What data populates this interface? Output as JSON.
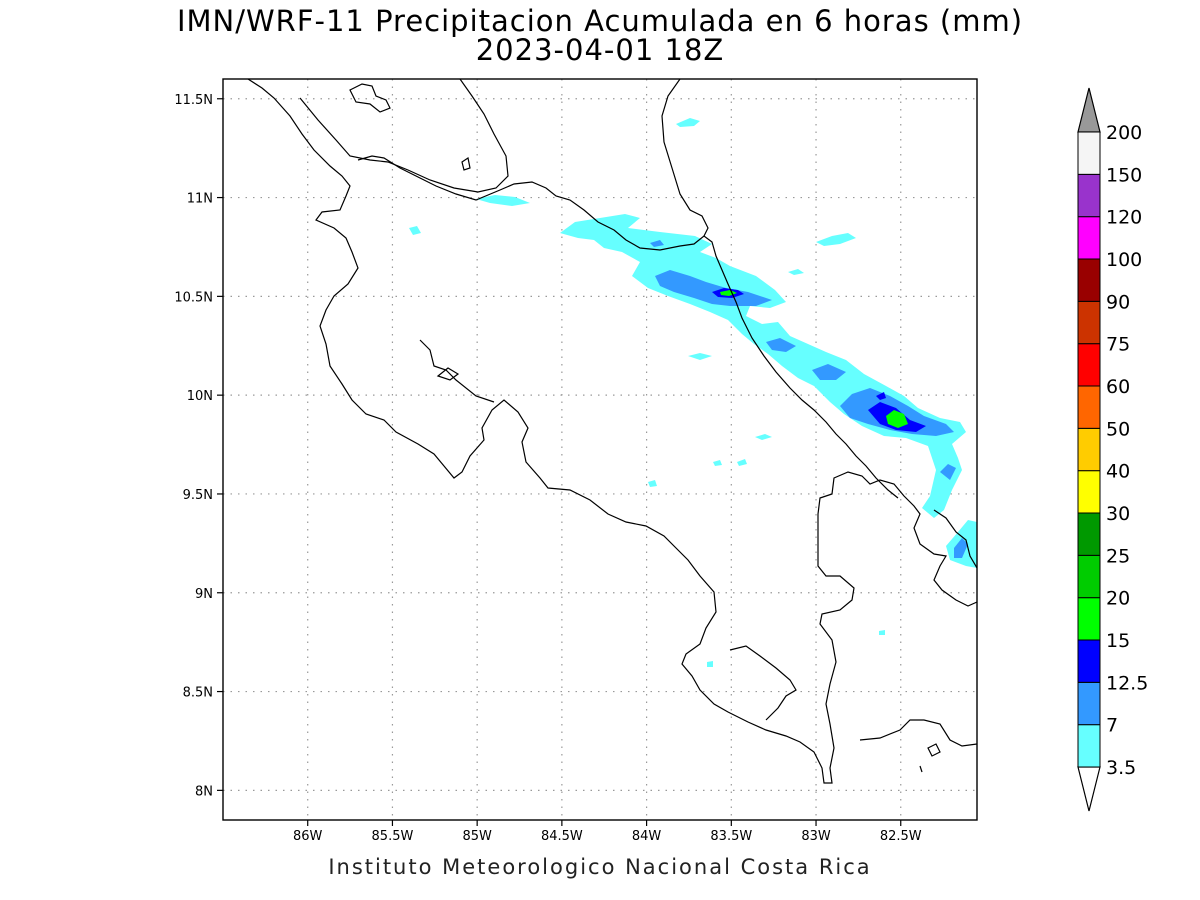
{
  "title": {
    "line1": "IMN/WRF-11 Precipitacion Acumulada en 6 horas (mm)",
    "line2": "2023-04-01 18Z"
  },
  "footer": "Instituto Meteorologico Nacional Costa Rica",
  "map": {
    "lon_range": [
      -86.5,
      -82.05
    ],
    "lat_range": [
      7.85,
      11.6
    ],
    "x_ticks": [
      {
        "lon": -86.0,
        "label": "86W"
      },
      {
        "lon": -85.5,
        "label": "85.5W"
      },
      {
        "lon": -85.0,
        "label": "85W"
      },
      {
        "lon": -84.5,
        "label": "84.5W"
      },
      {
        "lon": -84.0,
        "label": "84W"
      },
      {
        "lon": -83.5,
        "label": "83.5W"
      },
      {
        "lon": -83.0,
        "label": "83W"
      },
      {
        "lon": -82.5,
        "label": "82.5W"
      }
    ],
    "y_ticks": [
      {
        "lat": 11.5,
        "label": "11.5N"
      },
      {
        "lat": 11.0,
        "label": "11N"
      },
      {
        "lat": 10.5,
        "label": "10.5N"
      },
      {
        "lat": 10.0,
        "label": "10N"
      },
      {
        "lat": 9.5,
        "label": "9.5N"
      },
      {
        "lat": 9.0,
        "label": "9N"
      },
      {
        "lat": 8.5,
        "label": "8.5N"
      },
      {
        "lat": 8.0,
        "label": "8N"
      }
    ],
    "grid": "dotted"
  },
  "colorbar": {
    "levels": [
      "3.5",
      "7",
      "12.5",
      "15",
      "20",
      "25",
      "30",
      "40",
      "50",
      "60",
      "75",
      "90",
      "100",
      "120",
      "150",
      "200"
    ],
    "colors": [
      "#66ffff",
      "#3399ff",
      "#0000ff",
      "#00ff00",
      "#00cc00",
      "#009900",
      "#ffff00",
      "#ffcc00",
      "#ff6600",
      "#ff0000",
      "#cc3300",
      "#990000",
      "#ff00ff",
      "#9933cc",
      "#f5f5f5"
    ],
    "upper_arrow_color": "#999999",
    "lower_arrow_color": "#ffffff"
  }
}
